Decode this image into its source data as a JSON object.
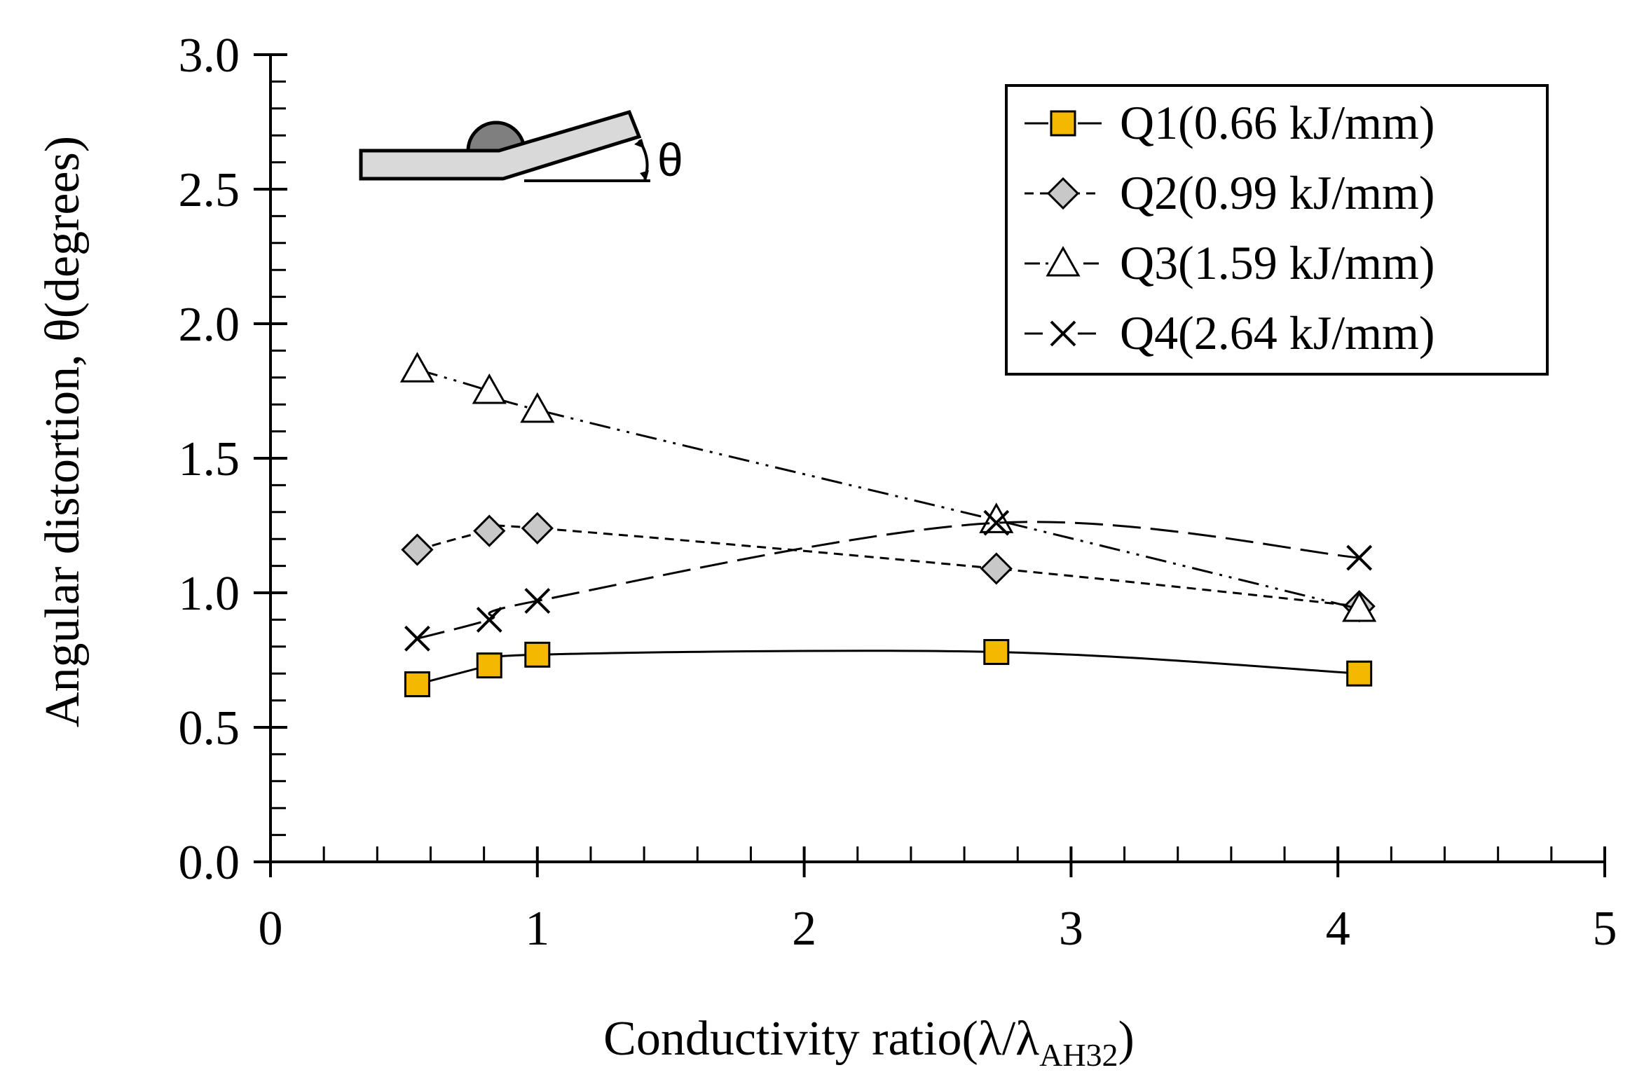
{
  "chart_data": {
    "type": "line",
    "title": "",
    "xlabel": "Conductivity ratio(λ/λ",
    "xlabel_subscript": "AH32",
    "xlabel_suffix": ")",
    "ylabel": "Angular distortion, θ(degrees)",
    "xlim": [
      0,
      5
    ],
    "ylim": [
      0.0,
      3.0
    ],
    "x_major_ticks": [
      0,
      1,
      2,
      3,
      4,
      5
    ],
    "x_tick_labels": [
      "0",
      "1",
      "2",
      "3",
      "4",
      "5"
    ],
    "y_major_ticks": [
      0.0,
      0.5,
      1.0,
      1.5,
      2.0,
      2.5,
      3.0
    ],
    "y_tick_labels": [
      "0.0",
      "0.5",
      "1.0",
      "1.5",
      "2.0",
      "2.5",
      "3.0"
    ],
    "x_minor_step": 0.2,
    "y_minor_step": 0.1,
    "grid": false,
    "legend_position": "top-right",
    "inset_label": "θ",
    "series": [
      {
        "name": "Q1(0.66 kJ/mm)",
        "marker": "square",
        "line_style": "solid",
        "color": "#f5b800",
        "x": [
          0.55,
          0.82,
          1.0,
          2.72,
          4.08
        ],
        "values": [
          0.66,
          0.73,
          0.77,
          0.78,
          0.7
        ]
      },
      {
        "name": "Q2(0.99 kJ/mm)",
        "marker": "diamond",
        "line_style": "dashed",
        "color": "#c8c8c8",
        "x": [
          0.55,
          0.82,
          1.0,
          2.72,
          4.08
        ],
        "values": [
          1.16,
          1.23,
          1.24,
          1.09,
          0.95
        ]
      },
      {
        "name": "Q3(1.59 kJ/mm)",
        "marker": "triangle",
        "line_style": "dash-dot-dot",
        "color": "#ffffff",
        "x": [
          0.55,
          0.82,
          1.0,
          2.72,
          4.08
        ],
        "values": [
          1.83,
          1.75,
          1.68,
          1.27,
          0.94
        ]
      },
      {
        "name": "Q4(2.64 kJ/mm)",
        "marker": "x",
        "line_style": "long-dash",
        "color": "#000000",
        "x": [
          0.55,
          0.82,
          1.0,
          2.72,
          4.08
        ],
        "values": [
          0.83,
          0.9,
          0.97,
          1.26,
          1.13
        ]
      }
    ]
  }
}
